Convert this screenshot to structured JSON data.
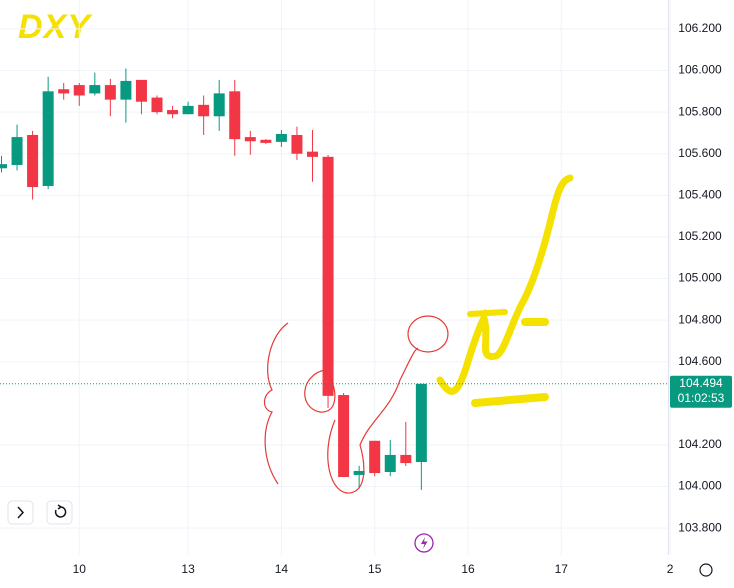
{
  "chart_data": {
    "type": "candlestick",
    "title": "DXY",
    "categories": [
      null,
      null,
      null,
      null,
      null,
      "10",
      null,
      null,
      null,
      null,
      null,
      null,
      "13",
      null,
      null,
      null,
      null,
      null,
      "14",
      null,
      null,
      null,
      null,
      null,
      "15",
      null,
      null,
      null,
      null,
      null,
      "16",
      null,
      null,
      null,
      null,
      null,
      "17",
      null,
      null,
      null,
      null,
      null,
      null,
      "2"
    ],
    "series": [
      {
        "up_color": "#089981",
        "down_color": "#f23645",
        "open": [
          105.53,
          105.546,
          105.69,
          105.445,
          105.91,
          105.93,
          105.89,
          105.93,
          105.86,
          105.955,
          105.87,
          105.81,
          105.79,
          105.835,
          105.78,
          105.9,
          105.68,
          105.667,
          105.657,
          105.69,
          105.61,
          105.585,
          104.44,
          104.056,
          104.22,
          104.07,
          104.152,
          104.118,
          null,
          null,
          null,
          null,
          null,
          null,
          null,
          null,
          null,
          null,
          null,
          null,
          null,
          null,
          null,
          null
        ],
        "high": [
          105.59,
          105.74,
          105.71,
          105.97,
          105.94,
          105.94,
          105.99,
          105.96,
          106.01,
          105.955,
          105.88,
          105.83,
          105.85,
          105.88,
          105.955,
          105.955,
          105.71,
          105.67,
          105.714,
          105.73,
          105.714,
          105.594,
          104.45,
          104.1,
          104.22,
          104.224,
          104.311,
          104.494,
          null,
          null,
          null,
          null,
          null,
          null,
          null,
          null,
          null,
          null,
          null,
          null,
          null,
          null,
          null,
          null
        ],
        "low": [
          105.51,
          105.52,
          105.38,
          105.43,
          105.86,
          105.83,
          105.88,
          105.78,
          105.75,
          105.79,
          105.79,
          105.77,
          105.79,
          105.69,
          105.71,
          105.59,
          105.595,
          105.647,
          105.633,
          105.57,
          105.465,
          104.378,
          104.046,
          103.99,
          104.05,
          104.05,
          104.099,
          103.984,
          null,
          null,
          null,
          null,
          null,
          null,
          null,
          null,
          null,
          null,
          null,
          null,
          null,
          null,
          null,
          null
        ],
        "close": [
          105.55,
          105.68,
          105.44,
          105.9,
          105.89,
          105.88,
          105.93,
          105.86,
          105.95,
          105.85,
          105.8,
          105.79,
          105.83,
          105.78,
          105.89,
          105.67,
          105.66,
          105.652,
          105.695,
          105.6,
          105.585,
          104.436,
          104.046,
          104.075,
          104.065,
          104.152,
          104.113,
          104.494,
          null,
          null,
          null,
          null,
          null,
          null,
          null,
          null,
          null,
          null,
          null,
          null,
          null,
          null,
          null,
          null
        ]
      }
    ],
    "ylim": [
      103.671,
      106.339
    ],
    "yticks": [
      {
        "value": 103.8,
        "label": "103.800"
      },
      {
        "value": 104.0,
        "label": "104.000"
      },
      {
        "value": 104.2,
        "label": "104.200"
      },
      {
        "value": 104.6,
        "label": "104.600"
      },
      {
        "value": 104.8,
        "label": "104.800"
      },
      {
        "value": 105.0,
        "label": "105.000"
      },
      {
        "value": 105.2,
        "label": "105.200"
      },
      {
        "value": 105.4,
        "label": "105.400"
      },
      {
        "value": 105.6,
        "label": "105.600"
      },
      {
        "value": 105.8,
        "label": "105.800"
      },
      {
        "value": 106.0,
        "label": "106.000"
      },
      {
        "value": 106.2,
        "label": "106.200"
      }
    ],
    "last_price": 104.494,
    "countdown": "01:02:53",
    "grid": true
  }
}
